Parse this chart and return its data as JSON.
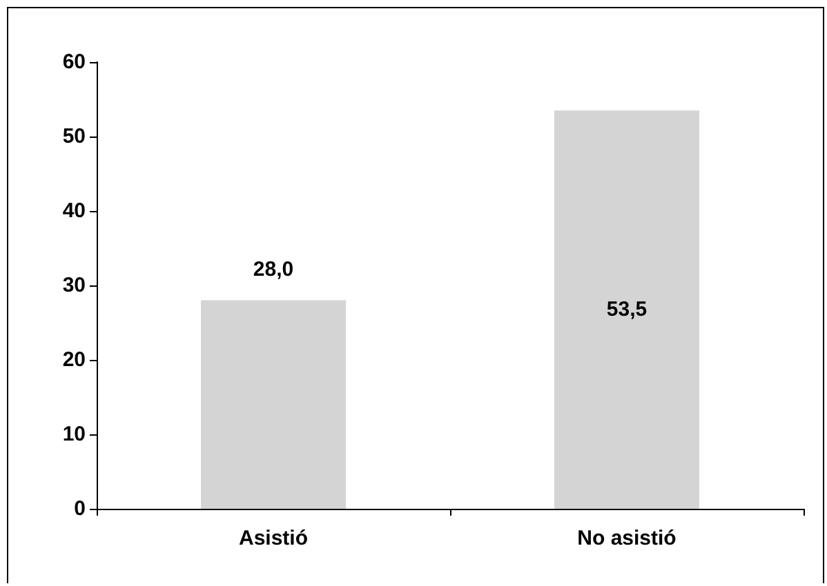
{
  "chart_data": {
    "type": "bar",
    "categories": [
      "Asistió",
      "No asistió"
    ],
    "values": [
      28.0,
      53.5
    ],
    "value_labels": [
      "28,0",
      "53,5"
    ],
    "color": "#d4d4d4",
    "ylim": [
      0,
      60
    ],
    "yticks": [
      0,
      10,
      20,
      30,
      40,
      50,
      60
    ],
    "grid": false
  }
}
